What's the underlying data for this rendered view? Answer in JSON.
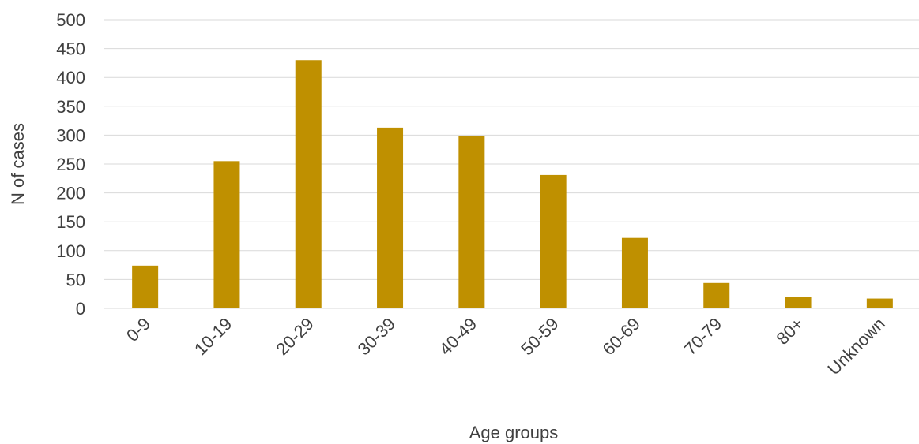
{
  "chart_data": {
    "type": "bar",
    "title": "",
    "xlabel": "Age groups",
    "ylabel": "N of cases",
    "categories": [
      "0-9",
      "10-19",
      "20-29",
      "30-39",
      "40-49",
      "50-59",
      "60-69",
      "70-79",
      "80+",
      "Unknown"
    ],
    "values": [
      74,
      255,
      430,
      313,
      298,
      231,
      122,
      44,
      20,
      17
    ],
    "ylim": [
      0,
      500
    ],
    "yticks": [
      0,
      50,
      100,
      150,
      200,
      250,
      300,
      350,
      400,
      450,
      500
    ],
    "grid": true,
    "legend": "none",
    "bar_color": "#bf9000"
  }
}
